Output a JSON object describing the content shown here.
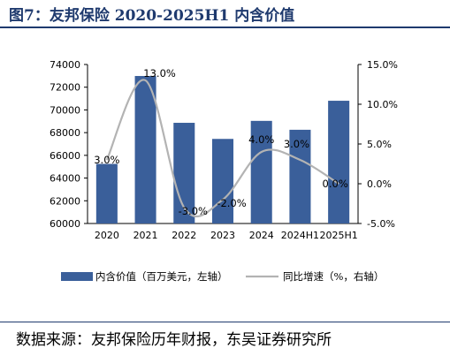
{
  "figure_title": "图7：友邦保险 2020-2025H1 内含价值",
  "source": "数据来源：友邦保险历年财报，东吴证券研究所",
  "chart_data": {
    "type": "bar+line",
    "categories": [
      "2020",
      "2021",
      "2022",
      "2023",
      "2024",
      "2024H1",
      "2025H1"
    ],
    "series": [
      {
        "name": "内含价值（百万美元，左轴）",
        "type": "bar",
        "axis": "left",
        "values": [
          65247,
          72987,
          68865,
          67447,
          69035,
          68252,
          70807
        ]
      },
      {
        "name": "同比增速（%，右轴）",
        "type": "line",
        "axis": "right",
        "values": [
          3.0,
          13.0,
          -3.0,
          -2.0,
          4.0,
          3.0,
          0.0
        ]
      }
    ],
    "data_labels": [
      "3.0%",
      "13.0%",
      "-3.0%",
      "-2.0%",
      "4.0%",
      "3.0%",
      "0.0%"
    ],
    "left_axis": {
      "min": 60000,
      "max": 74000,
      "step": 2000,
      "ticks": [
        "60000",
        "62000",
        "64000",
        "66000",
        "68000",
        "70000",
        "72000",
        "74000"
      ]
    },
    "right_axis": {
      "min": -5,
      "max": 15,
      "step": 5,
      "ticks": [
        "-5.0%",
        "0.0%",
        "5.0%",
        "10.0%",
        "15.0%"
      ]
    },
    "grid": false,
    "legend_position": "bottom",
    "colors": {
      "bar": "#3a5f9a",
      "line": "#b3b3b3",
      "title": "#1f3a6e"
    }
  }
}
